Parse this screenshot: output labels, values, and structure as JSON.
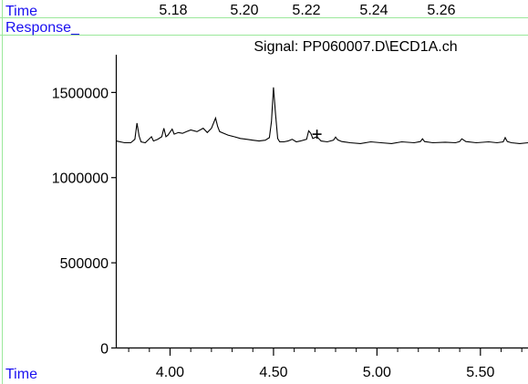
{
  "header": {
    "time_label": "Time",
    "response_label": "Response_",
    "signal_title": "Signal: PP060007.D\\ECD1A.ch",
    "top_ticks": [
      "5.18",
      "5.20",
      "5.22",
      "5.24",
      "5.26"
    ]
  },
  "footer": {
    "time_label": "Time"
  },
  "colors": {
    "label_blue": "#1a10f0",
    "guide_green": "#9be89b",
    "trace": "#000000"
  },
  "chart_data": {
    "type": "line",
    "title": "Signal: PP060007.D\\ECD1A.ch",
    "xlabel": "Time",
    "ylabel": "Response_",
    "xlim": [
      3.74,
      5.73
    ],
    "ylim": [
      0,
      1850000
    ],
    "x_ticks": [
      4.0,
      4.5,
      5.0,
      5.5
    ],
    "x_tick_labels": [
      "4.00",
      "4.50",
      "5.00",
      "5.50"
    ],
    "y_ticks": [
      0,
      500000,
      1000000,
      1500000
    ],
    "y_tick_labels": [
      "0",
      "500000",
      "1000000",
      "1500000"
    ],
    "marker": {
      "symbol": "+",
      "x": 4.71,
      "y": 1255000
    },
    "series": [
      {
        "x": [
          3.74,
          3.78,
          3.81,
          3.83,
          3.84,
          3.85,
          3.86,
          3.88,
          3.91,
          3.92,
          3.94,
          3.96,
          3.97,
          3.98,
          3.99,
          4.01,
          4.02,
          4.04,
          4.06,
          4.08,
          4.1,
          4.13,
          4.16,
          4.18,
          4.2,
          4.22,
          4.23,
          4.24,
          4.26,
          4.28,
          4.31,
          4.34,
          4.37,
          4.4,
          4.43,
          4.46,
          4.48,
          4.49,
          4.5,
          4.51,
          4.52,
          4.53,
          4.55,
          4.57,
          4.59,
          4.61,
          4.63,
          4.66,
          4.67,
          4.68,
          4.69,
          4.71,
          4.73,
          4.76,
          4.79,
          4.8,
          4.81,
          4.83,
          4.87,
          4.92,
          4.97,
          5.02,
          5.07,
          5.12,
          5.18,
          5.21,
          5.22,
          5.23,
          5.27,
          5.33,
          5.38,
          5.4,
          5.41,
          5.43,
          5.48,
          5.54,
          5.58,
          5.61,
          5.62,
          5.63,
          5.65,
          5.69,
          5.73
        ],
        "y": [
          1215000,
          1205000,
          1205000,
          1225000,
          1320000,
          1245000,
          1210000,
          1205000,
          1240000,
          1215000,
          1225000,
          1240000,
          1290000,
          1240000,
          1250000,
          1285000,
          1255000,
          1265000,
          1260000,
          1270000,
          1280000,
          1270000,
          1290000,
          1265000,
          1290000,
          1350000,
          1300000,
          1270000,
          1260000,
          1250000,
          1240000,
          1230000,
          1225000,
          1220000,
          1215000,
          1220000,
          1235000,
          1330000,
          1530000,
          1370000,
          1230000,
          1210000,
          1210000,
          1215000,
          1225000,
          1210000,
          1215000,
          1225000,
          1275000,
          1260000,
          1230000,
          1240000,
          1215000,
          1210000,
          1220000,
          1238000,
          1222000,
          1212000,
          1205000,
          1200000,
          1210000,
          1205000,
          1200000,
          1210000,
          1205000,
          1212000,
          1228000,
          1212000,
          1205000,
          1208000,
          1205000,
          1212000,
          1228000,
          1212000,
          1205000,
          1210000,
          1205000,
          1210000,
          1235000,
          1212000,
          1205000,
          1200000,
          1205000
        ]
      }
    ]
  }
}
